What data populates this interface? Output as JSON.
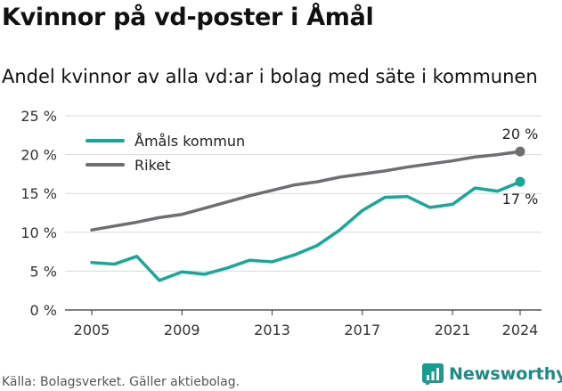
{
  "title": "Kvinnor på vd-poster i Åmål",
  "subtitle": "Andel kvinnor av alla vd:ar i bolag med säte i kommunen",
  "source": "Källa: Bolagsverket. Gäller aktiebolag.",
  "brand": {
    "name": "Newsworthy",
    "color": "#1a9b8f"
  },
  "chart_data": {
    "type": "line",
    "x": [
      2005,
      2006,
      2007,
      2008,
      2009,
      2010,
      2011,
      2012,
      2013,
      2014,
      2015,
      2016,
      2017,
      2018,
      2019,
      2020,
      2021,
      2022,
      2023,
      2024
    ],
    "series": [
      {
        "name": "Åmåls kommun",
        "color": "#1aa79a",
        "values": [
          6.1,
          5.9,
          6.9,
          3.8,
          4.9,
          4.6,
          5.4,
          6.4,
          6.2,
          7.1,
          8.3,
          10.3,
          12.8,
          14.5,
          14.6,
          13.2,
          13.6,
          15.7,
          15.3,
          16.5
        ],
        "end_label": "17 %"
      },
      {
        "name": "Riket",
        "color": "#6e6e73",
        "values": [
          10.3,
          10.8,
          11.3,
          11.9,
          12.3,
          13.1,
          13.9,
          14.7,
          15.4,
          16.1,
          16.5,
          17.1,
          17.5,
          17.9,
          18.4,
          18.8,
          19.2,
          19.7,
          20.0,
          20.4
        ],
        "end_label": "20 %"
      }
    ],
    "x_ticks": [
      2005,
      2009,
      2013,
      2017,
      2021,
      2024
    ],
    "y_ticks": [
      0,
      5,
      10,
      15,
      20,
      25
    ],
    "y_tick_labels": [
      "0 %",
      "5 %",
      "10 %",
      "15 %",
      "20 %",
      "25 %"
    ],
    "ylim": [
      0,
      25
    ],
    "xlim": [
      2005,
      2024
    ],
    "grid": "horizontal",
    "legend_position": "top-left"
  }
}
